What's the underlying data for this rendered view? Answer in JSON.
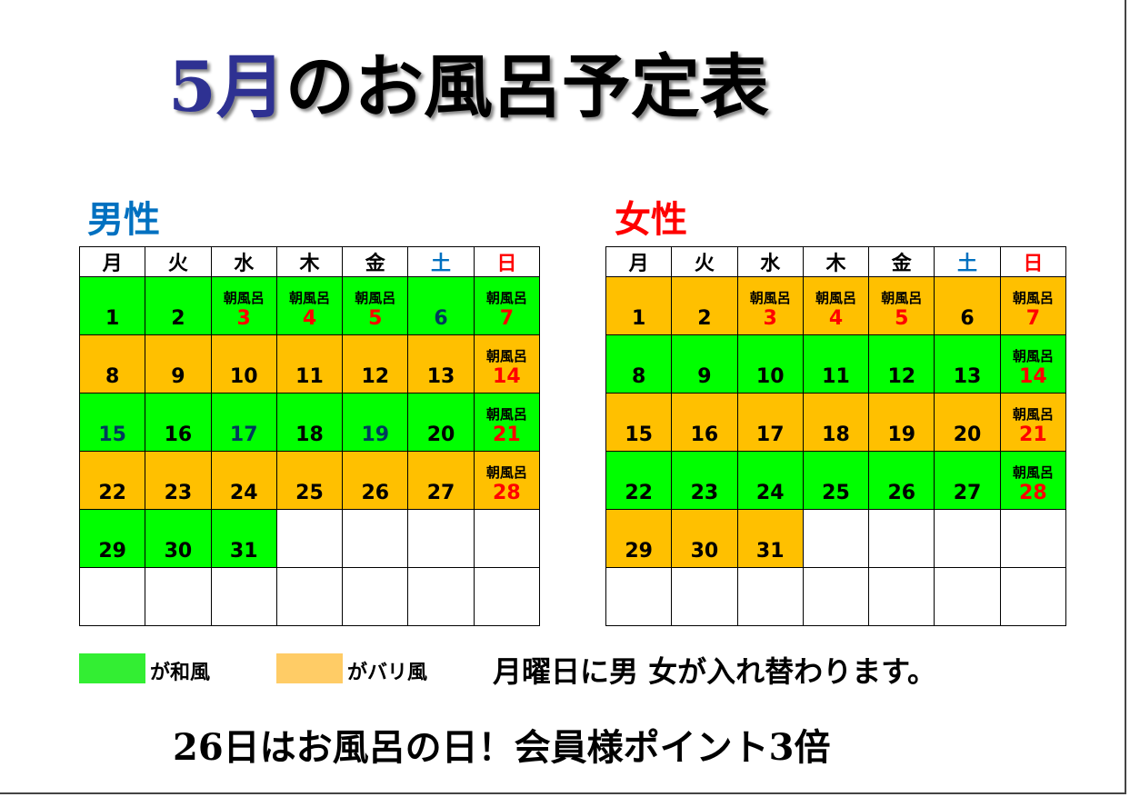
{
  "colors": {
    "green": "#00ff00",
    "orange": "#ffc000",
    "legend_green": "#33ee33",
    "legend_orange": "#ffcc66",
    "red": "#ff0000",
    "blue": "#0070c0",
    "dark_teal": "#003b5c"
  },
  "title": {
    "month": "5月",
    "rest": "のお風呂予定表"
  },
  "weekdays": [
    "月",
    "火",
    "水",
    "木",
    "金",
    "土",
    "日"
  ],
  "men": {
    "label": "男性",
    "weeks": [
      [
        {
          "day": "1",
          "bg": "green",
          "note": "",
          "color": "default"
        },
        {
          "day": "2",
          "bg": "green",
          "note": "",
          "color": "default"
        },
        {
          "day": "3",
          "bg": "green",
          "note": "朝風呂",
          "color": "red"
        },
        {
          "day": "4",
          "bg": "green",
          "note": "朝風呂",
          "color": "red"
        },
        {
          "day": "5",
          "bg": "green",
          "note": "朝風呂",
          "color": "red"
        },
        {
          "day": "6",
          "bg": "green",
          "note": "",
          "color": "teal"
        },
        {
          "day": "7",
          "bg": "green",
          "note": "朝風呂",
          "color": "red"
        }
      ],
      [
        {
          "day": "8",
          "bg": "orange",
          "note": "",
          "color": "default"
        },
        {
          "day": "9",
          "bg": "orange",
          "note": "",
          "color": "default"
        },
        {
          "day": "10",
          "bg": "orange",
          "note": "",
          "color": "default"
        },
        {
          "day": "11",
          "bg": "orange",
          "note": "",
          "color": "default"
        },
        {
          "day": "12",
          "bg": "orange",
          "note": "",
          "color": "default"
        },
        {
          "day": "13",
          "bg": "orange",
          "note": "",
          "color": "default"
        },
        {
          "day": "14",
          "bg": "orange",
          "note": "朝風呂",
          "color": "red"
        }
      ],
      [
        {
          "day": "15",
          "bg": "green",
          "note": "",
          "color": "teal"
        },
        {
          "day": "16",
          "bg": "green",
          "note": "",
          "color": "default"
        },
        {
          "day": "17",
          "bg": "green",
          "note": "",
          "color": "teal"
        },
        {
          "day": "18",
          "bg": "green",
          "note": "",
          "color": "default"
        },
        {
          "day": "19",
          "bg": "green",
          "note": "",
          "color": "teal"
        },
        {
          "day": "20",
          "bg": "green",
          "note": "",
          "color": "default"
        },
        {
          "day": "21",
          "bg": "green",
          "note": "朝風呂",
          "color": "red"
        }
      ],
      [
        {
          "day": "22",
          "bg": "orange",
          "note": "",
          "color": "default"
        },
        {
          "day": "23",
          "bg": "orange",
          "note": "",
          "color": "default"
        },
        {
          "day": "24",
          "bg": "orange",
          "note": "",
          "color": "default"
        },
        {
          "day": "25",
          "bg": "orange",
          "note": "",
          "color": "default"
        },
        {
          "day": "26",
          "bg": "orange",
          "note": "",
          "color": "default"
        },
        {
          "day": "27",
          "bg": "orange",
          "note": "",
          "color": "default"
        },
        {
          "day": "28",
          "bg": "orange",
          "note": "朝風呂",
          "color": "red"
        }
      ],
      [
        {
          "day": "29",
          "bg": "green",
          "note": "",
          "color": "default"
        },
        {
          "day": "30",
          "bg": "green",
          "note": "",
          "color": "default"
        },
        {
          "day": "31",
          "bg": "green",
          "note": "",
          "color": "default"
        },
        {
          "day": "",
          "bg": "white",
          "note": "",
          "color": "default"
        },
        {
          "day": "",
          "bg": "white",
          "note": "",
          "color": "default"
        },
        {
          "day": "",
          "bg": "white",
          "note": "",
          "color": "default"
        },
        {
          "day": "",
          "bg": "white",
          "note": "",
          "color": "default"
        }
      ],
      [
        {
          "day": "",
          "bg": "white",
          "note": "",
          "color": "default"
        },
        {
          "day": "",
          "bg": "white",
          "note": "",
          "color": "default"
        },
        {
          "day": "",
          "bg": "white",
          "note": "",
          "color": "default"
        },
        {
          "day": "",
          "bg": "white",
          "note": "",
          "color": "default"
        },
        {
          "day": "",
          "bg": "white",
          "note": "",
          "color": "default"
        },
        {
          "day": "",
          "bg": "white",
          "note": "",
          "color": "default"
        },
        {
          "day": "",
          "bg": "white",
          "note": "",
          "color": "default"
        }
      ]
    ]
  },
  "women": {
    "label": "女性",
    "weeks": [
      [
        {
          "day": "1",
          "bg": "orange",
          "note": "",
          "color": "default"
        },
        {
          "day": "2",
          "bg": "orange",
          "note": "",
          "color": "default"
        },
        {
          "day": "3",
          "bg": "orange",
          "note": "朝風呂",
          "color": "red"
        },
        {
          "day": "4",
          "bg": "orange",
          "note": "朝風呂",
          "color": "red"
        },
        {
          "day": "5",
          "bg": "orange",
          "note": "朝風呂",
          "color": "red"
        },
        {
          "day": "6",
          "bg": "orange",
          "note": "",
          "color": "default"
        },
        {
          "day": "7",
          "bg": "orange",
          "note": "朝風呂",
          "color": "red"
        }
      ],
      [
        {
          "day": "8",
          "bg": "green",
          "note": "",
          "color": "default"
        },
        {
          "day": "9",
          "bg": "green",
          "note": "",
          "color": "default"
        },
        {
          "day": "10",
          "bg": "green",
          "note": "",
          "color": "default"
        },
        {
          "day": "11",
          "bg": "green",
          "note": "",
          "color": "default"
        },
        {
          "day": "12",
          "bg": "green",
          "note": "",
          "color": "default"
        },
        {
          "day": "13",
          "bg": "green",
          "note": "",
          "color": "default"
        },
        {
          "day": "14",
          "bg": "green",
          "note": "朝風呂",
          "color": "red"
        }
      ],
      [
        {
          "day": "15",
          "bg": "orange",
          "note": "",
          "color": "default"
        },
        {
          "day": "16",
          "bg": "orange",
          "note": "",
          "color": "default"
        },
        {
          "day": "17",
          "bg": "orange",
          "note": "",
          "color": "default"
        },
        {
          "day": "18",
          "bg": "orange",
          "note": "",
          "color": "default"
        },
        {
          "day": "19",
          "bg": "orange",
          "note": "",
          "color": "default"
        },
        {
          "day": "20",
          "bg": "orange",
          "note": "",
          "color": "default"
        },
        {
          "day": "21",
          "bg": "orange",
          "note": "朝風呂",
          "color": "red"
        }
      ],
      [
        {
          "day": "22",
          "bg": "green",
          "note": "",
          "color": "default"
        },
        {
          "day": "23",
          "bg": "green",
          "note": "",
          "color": "default"
        },
        {
          "day": "24",
          "bg": "green",
          "note": "",
          "color": "default"
        },
        {
          "day": "25",
          "bg": "green",
          "note": "",
          "color": "default"
        },
        {
          "day": "26",
          "bg": "green",
          "note": "",
          "color": "default"
        },
        {
          "day": "27",
          "bg": "green",
          "note": "",
          "color": "default"
        },
        {
          "day": "28",
          "bg": "green",
          "note": "朝風呂",
          "color": "red"
        }
      ],
      [
        {
          "day": "29",
          "bg": "orange",
          "note": "",
          "color": "default"
        },
        {
          "day": "30",
          "bg": "orange",
          "note": "",
          "color": "default"
        },
        {
          "day": "31",
          "bg": "orange",
          "note": "",
          "color": "default"
        },
        {
          "day": "",
          "bg": "white",
          "note": "",
          "color": "default"
        },
        {
          "day": "",
          "bg": "white",
          "note": "",
          "color": "default"
        },
        {
          "day": "",
          "bg": "white",
          "note": "",
          "color": "default"
        },
        {
          "day": "",
          "bg": "white",
          "note": "",
          "color": "default"
        }
      ],
      [
        {
          "day": "",
          "bg": "white",
          "note": "",
          "color": "default"
        },
        {
          "day": "",
          "bg": "white",
          "note": "",
          "color": "default"
        },
        {
          "day": "",
          "bg": "white",
          "note": "",
          "color": "default"
        },
        {
          "day": "",
          "bg": "white",
          "note": "",
          "color": "default"
        },
        {
          "day": "",
          "bg": "white",
          "note": "",
          "color": "default"
        },
        {
          "day": "",
          "bg": "white",
          "note": "",
          "color": "default"
        },
        {
          "day": "",
          "bg": "white",
          "note": "",
          "color": "default"
        }
      ]
    ]
  },
  "legend": {
    "green_label": "が和風",
    "orange_label": "がバリ風"
  },
  "rule_note": "月曜日に男 女が入れ替わります。",
  "footer": "26日はお風呂の日！会員様ポイント3倍"
}
